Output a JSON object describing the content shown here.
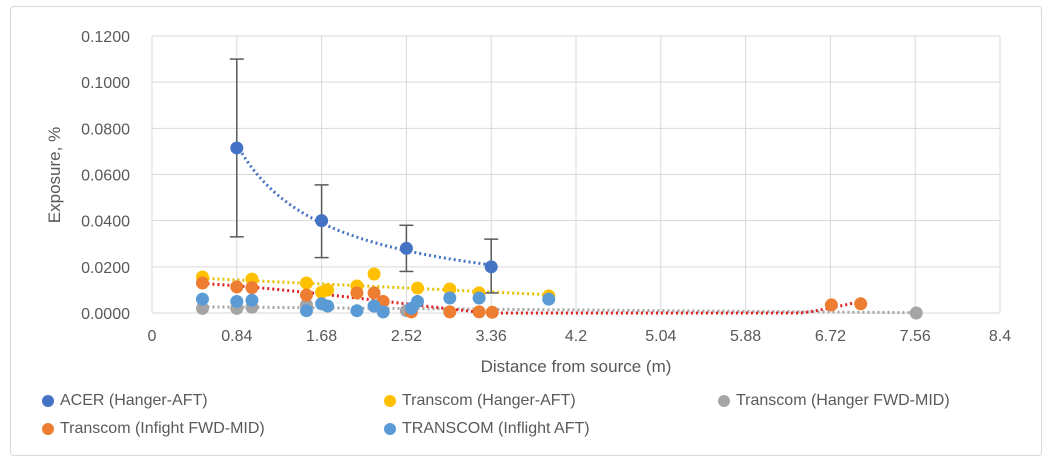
{
  "chart_data": {
    "type": "scatter",
    "xlabel": "Distance from source (m)",
    "ylabel": "Exposure, %",
    "xlim": [
      0,
      8.4
    ],
    "ylim": [
      0,
      0.12
    ],
    "xticks": [
      "0",
      "0.84",
      "1.68",
      "2.52",
      "3.36",
      "4.2",
      "5.04",
      "5.88",
      "6.72",
      "7.56",
      "8.4"
    ],
    "yticks": [
      "0.0000",
      "0.0200",
      "0.0400",
      "0.0600",
      "0.0800",
      "0.1000",
      "0.1200"
    ],
    "grid": true,
    "legend_position": "bottom",
    "series": [
      {
        "name": "ACER (Hanger-AFT)",
        "color": "#4472c4",
        "trendline": "power",
        "x": [
          0.84,
          1.68,
          2.52,
          3.36
        ],
        "y": [
          0.0715,
          0.04,
          0.028,
          0.02
        ],
        "error_low": [
          0.033,
          0.024,
          0.018,
          0.0087
        ],
        "error_high": [
          0.11,
          0.0555,
          0.038,
          0.032
        ]
      },
      {
        "name": "Transcom (Hanger-AFT)",
        "color": "#ffc000",
        "trendline": "linear",
        "x": [
          0.5,
          0.99,
          1.53,
          1.68,
          1.74,
          2.03,
          2.2,
          2.63,
          2.95,
          3.24,
          3.93
        ],
        "y": [
          0.0156,
          0.0147,
          0.013,
          0.009,
          0.01,
          0.0117,
          0.0169,
          0.0108,
          0.0104,
          0.0087,
          0.0074
        ]
      },
      {
        "name": "Transcom (Hanger FWD-MID)",
        "color": "#a5a5a5",
        "trendline": "linear",
        "x": [
          0.5,
          0.84,
          0.99,
          1.53,
          2.2,
          2.52,
          7.57
        ],
        "y": [
          0.002,
          0.002,
          0.0025,
          0.0035,
          0.003,
          0.001,
          0.0
        ]
      },
      {
        "name": "Transcom (Infight FWD-MID)",
        "color": "#ed7d31",
        "trendline": "polynomial",
        "x": [
          0.5,
          0.84,
          0.99,
          1.53,
          2.03,
          2.2,
          2.29,
          2.57,
          2.95,
          3.24,
          3.37,
          6.73,
          7.02
        ],
        "y": [
          0.013,
          0.0113,
          0.011,
          0.0078,
          0.0087,
          0.0087,
          0.005,
          0.0005,
          0.0005,
          0.0005,
          0.0003,
          0.0035,
          0.004
        ]
      },
      {
        "name": "TRANSCOM (Inflight AFT)",
        "color": "#5b9bd5",
        "trendline": "none",
        "x": [
          0.5,
          0.84,
          0.99,
          1.53,
          1.68,
          1.74,
          2.03,
          2.2,
          2.29,
          2.57,
          2.63,
          2.95,
          3.24,
          3.93
        ],
        "y": [
          0.006,
          0.005,
          0.0055,
          0.001,
          0.004,
          0.003,
          0.001,
          0.003,
          0.0005,
          0.002,
          0.005,
          0.0065,
          0.0065,
          0.006
        ]
      }
    ]
  }
}
